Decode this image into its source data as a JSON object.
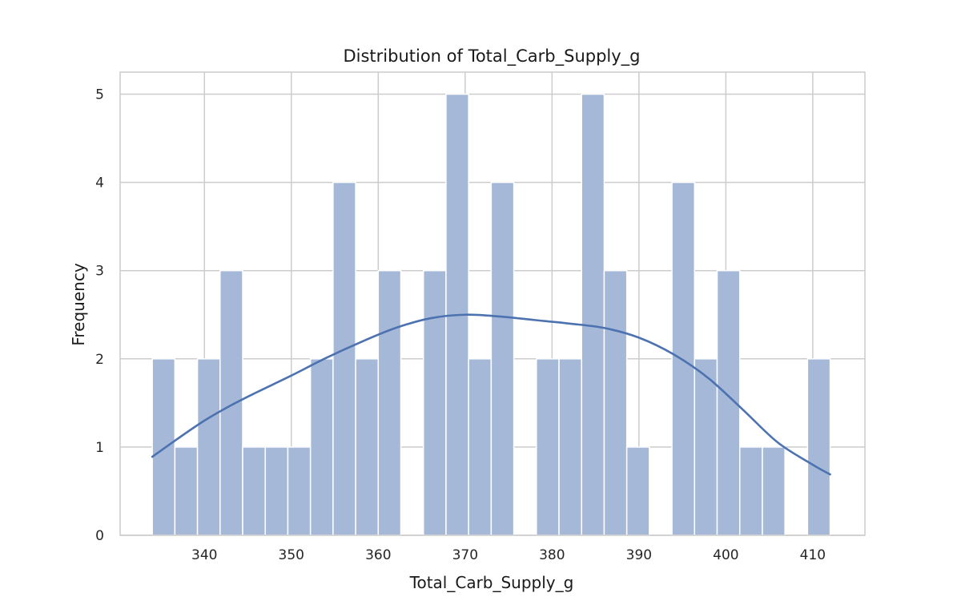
{
  "chart_data": {
    "type": "histogram",
    "title": "Distribution of Total_Carb_Supply_g",
    "xlabel": "Total_Carb_Supply_g",
    "ylabel": "Frequency",
    "xlim": [
      330.3,
      416.0
    ],
    "ylim": [
      0,
      5.25
    ],
    "xticks": [
      340,
      350,
      360,
      370,
      380,
      390,
      400,
      410
    ],
    "yticks": [
      0,
      1,
      2,
      3,
      4,
      5
    ],
    "grid": true,
    "legend": "none",
    "bar_color": "#a5b8d8",
    "line_color": "#4c72b0",
    "bins": [
      {
        "x0": 334.0,
        "x1": 336.6,
        "count": 2
      },
      {
        "x0": 336.6,
        "x1": 339.2,
        "count": 1
      },
      {
        "x0": 339.2,
        "x1": 341.8,
        "count": 2
      },
      {
        "x0": 341.8,
        "x1": 344.4,
        "count": 3
      },
      {
        "x0": 344.4,
        "x1": 347.0,
        "count": 1
      },
      {
        "x0": 347.0,
        "x1": 349.6,
        "count": 1
      },
      {
        "x0": 349.6,
        "x1": 352.2,
        "count": 1
      },
      {
        "x0": 352.2,
        "x1": 354.8,
        "count": 2
      },
      {
        "x0": 354.8,
        "x1": 357.4,
        "count": 4
      },
      {
        "x0": 357.4,
        "x1": 360.0,
        "count": 2
      },
      {
        "x0": 360.0,
        "x1": 362.6,
        "count": 3
      },
      {
        "x0": 362.6,
        "x1": 365.2,
        "count": 0
      },
      {
        "x0": 365.2,
        "x1": 367.8,
        "count": 3
      },
      {
        "x0": 367.8,
        "x1": 370.4,
        "count": 5
      },
      {
        "x0": 370.4,
        "x1": 373.0,
        "count": 2
      },
      {
        "x0": 373.0,
        "x1": 375.6,
        "count": 4
      },
      {
        "x0": 375.6,
        "x1": 378.2,
        "count": 0
      },
      {
        "x0": 378.2,
        "x1": 380.8,
        "count": 2
      },
      {
        "x0": 380.8,
        "x1": 383.4,
        "count": 2
      },
      {
        "x0": 383.4,
        "x1": 386.0,
        "count": 5
      },
      {
        "x0": 386.0,
        "x1": 388.6,
        "count": 3
      },
      {
        "x0": 388.6,
        "x1": 391.2,
        "count": 1
      },
      {
        "x0": 391.2,
        "x1": 393.8,
        "count": 0
      },
      {
        "x0": 393.8,
        "x1": 396.4,
        "count": 4
      },
      {
        "x0": 396.4,
        "x1": 399.0,
        "count": 2
      },
      {
        "x0": 399.0,
        "x1": 401.6,
        "count": 3
      },
      {
        "x0": 401.6,
        "x1": 404.2,
        "count": 1
      },
      {
        "x0": 404.2,
        "x1": 406.8,
        "count": 1
      },
      {
        "x0": 406.8,
        "x1": 409.4,
        "count": 0
      },
      {
        "x0": 409.4,
        "x1": 412.0,
        "count": 2
      }
    ],
    "kde": {
      "x": [
        334,
        337,
        340,
        343,
        346,
        350,
        354,
        358,
        362,
        366,
        370,
        374,
        378,
        382,
        386,
        390,
        394,
        398,
        402,
        406,
        410,
        412
      ],
      "y": [
        0.89,
        1.1,
        1.3,
        1.47,
        1.62,
        1.81,
        2.01,
        2.19,
        2.35,
        2.46,
        2.5,
        2.48,
        2.44,
        2.4,
        2.35,
        2.24,
        2.05,
        1.78,
        1.42,
        1.05,
        0.8,
        0.69
      ]
    }
  }
}
